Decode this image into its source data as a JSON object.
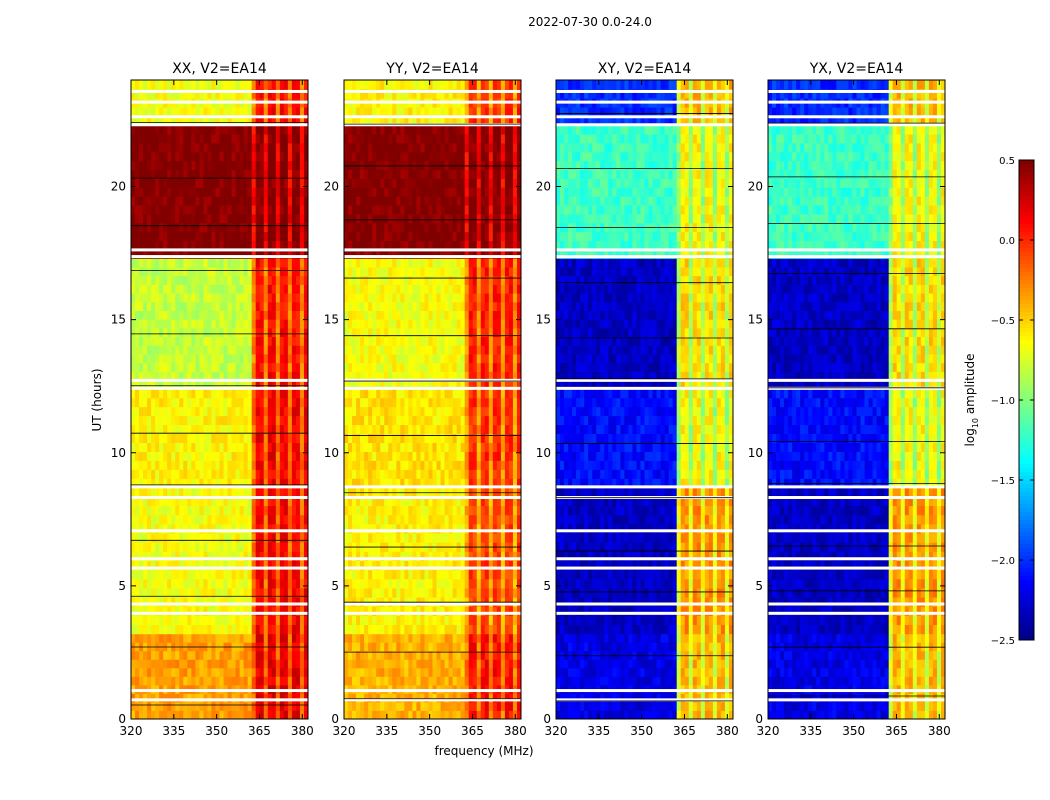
{
  "chart_data": {
    "type": "heatmap",
    "suptitle": "2022-07-30 0.0-24.0",
    "xlabel": "frequency (MHz)",
    "ylabel": "UT (hours)",
    "xlim": [
      320,
      382
    ],
    "ylim": [
      0,
      24
    ],
    "x_ticks": [
      320,
      335,
      350,
      365,
      380
    ],
    "y_ticks": [
      0,
      5,
      10,
      15,
      20
    ],
    "colorbar": {
      "label_main": "log",
      "label_sub": "10",
      "label_rest": " amplitude",
      "range": [
        -2.5,
        0.5
      ],
      "ticks": [
        0.5,
        0.0,
        -0.5,
        -1.0,
        -1.5,
        -2.0,
        -2.5
      ],
      "tick_labels": [
        "0.5",
        "0.0",
        "−0.5",
        "−1.0",
        "−1.5",
        "−2.0",
        "−2.5"
      ],
      "colormap": "jet"
    },
    "panels": [
      {
        "title": "XX, V2=EA14",
        "bands": [
          {
            "t0": 0.0,
            "t1": 3.2,
            "low": -0.35,
            "high": 0.2
          },
          {
            "t0": 3.2,
            "t1": 8.7,
            "low": -0.65,
            "high": 0.15
          },
          {
            "t0": 8.7,
            "t1": 12.4,
            "low": -0.6,
            "high": 0.15
          },
          {
            "t0": 12.4,
            "t1": 17.3,
            "low": -0.8,
            "high": 0.1
          },
          {
            "t0": 17.3,
            "t1": 22.3,
            "low": 0.5,
            "high": 0.5
          },
          {
            "t0": 22.3,
            "t1": 24.0,
            "low": -0.65,
            "high": 0.1
          }
        ]
      },
      {
        "title": "YY, V2=EA14",
        "bands": [
          {
            "t0": 0.0,
            "t1": 3.2,
            "low": -0.4,
            "high": 0.1
          },
          {
            "t0": 3.2,
            "t1": 8.7,
            "low": -0.6,
            "high": -0.05
          },
          {
            "t0": 8.7,
            "t1": 12.4,
            "low": -0.55,
            "high": 0.0
          },
          {
            "t0": 12.4,
            "t1": 17.3,
            "low": -0.65,
            "high": 0.05
          },
          {
            "t0": 17.3,
            "t1": 22.3,
            "low": 0.5,
            "high": 0.5
          },
          {
            "t0": 22.3,
            "t1": 24.0,
            "low": -0.6,
            "high": 0.0
          }
        ]
      },
      {
        "title": "XY, V2=EA14",
        "bands": [
          {
            "t0": 0.0,
            "t1": 3.2,
            "low": -2.2,
            "high": -0.4
          },
          {
            "t0": 3.2,
            "t1": 8.7,
            "low": -2.3,
            "high": -0.3
          },
          {
            "t0": 8.7,
            "t1": 12.4,
            "low": -2.1,
            "high": -0.6
          },
          {
            "t0": 12.4,
            "t1": 17.3,
            "low": -2.3,
            "high": -0.5
          },
          {
            "t0": 17.3,
            "t1": 22.3,
            "low": -1.2,
            "high": -0.6
          },
          {
            "t0": 22.3,
            "t1": 24.0,
            "low": -2.0,
            "high": -0.4
          }
        ]
      },
      {
        "title": "YX, V2=EA14",
        "bands": [
          {
            "t0": 0.0,
            "t1": 3.2,
            "low": -2.2,
            "high": -0.4
          },
          {
            "t0": 3.2,
            "t1": 8.7,
            "low": -2.3,
            "high": -0.3
          },
          {
            "t0": 8.7,
            "t1": 12.4,
            "low": -2.1,
            "high": -0.6
          },
          {
            "t0": 12.4,
            "t1": 17.3,
            "low": -2.3,
            "high": -0.5
          },
          {
            "t0": 17.3,
            "t1": 22.3,
            "low": -1.2,
            "high": -0.6
          },
          {
            "t0": 22.3,
            "t1": 24.0,
            "low": -2.0,
            "high": -0.4
          }
        ]
      }
    ],
    "bright_band_start_mhz": 362,
    "flagged_gaps_hours": [
      0.7,
      1.05,
      3.95,
      4.3,
      5.65,
      6.0,
      7.05,
      8.3,
      8.7,
      12.4,
      12.7,
      17.35,
      17.6,
      22.3,
      22.6,
      23.15,
      23.55
    ]
  }
}
